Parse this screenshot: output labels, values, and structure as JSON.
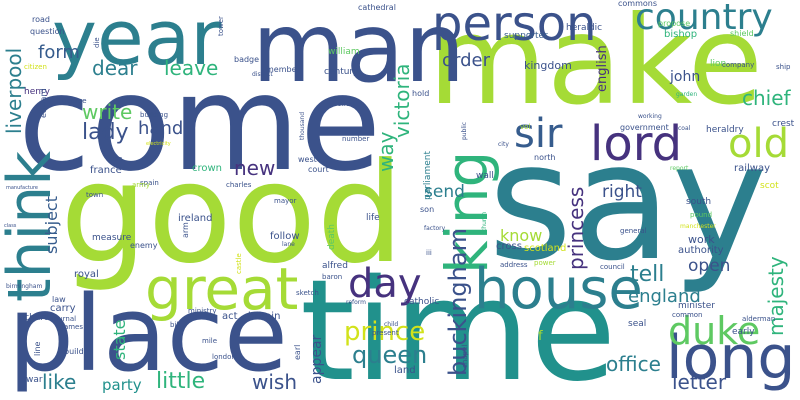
{
  "colors": {
    "background": "#ffffff",
    "palette": [
      "#3b528b",
      "#2c7f8e",
      "#21918c",
      "#2fb47c",
      "#5ec962",
      "#a5db36",
      "#d2e21b",
      "#440154",
      "#46327e",
      "#365c8d"
    ]
  },
  "words": [
    {
      "text": "come",
      "color": "#3b528b",
      "weight": 1.0
    },
    {
      "text": "make",
      "color": "#a5db36",
      "weight": 0.93
    },
    {
      "text": "say",
      "color": "#2c7f8e",
      "weight": 0.95
    },
    {
      "text": "good",
      "color": "#a5db36",
      "weight": 0.92
    },
    {
      "text": "time",
      "color": "#21918c",
      "weight": 0.9
    },
    {
      "text": "year",
      "color": "#2c7f8e",
      "weight": 0.72
    },
    {
      "text": "man",
      "color": "#3b528b",
      "weight": 0.7
    },
    {
      "text": "place",
      "color": "#3b528b",
      "weight": 0.66
    },
    {
      "text": "think",
      "color": "#2c7f8e",
      "weight": 0.55
    },
    {
      "text": "king",
      "color": "#2fb47c",
      "weight": 0.55
    },
    {
      "text": "house",
      "color": "#2c7f8e",
      "weight": 0.52
    },
    {
      "text": "long",
      "color": "#3b528b",
      "weight": 0.5
    },
    {
      "text": "great",
      "color": "#a5db36",
      "weight": 0.5
    },
    {
      "text": "person",
      "color": "#3b528b",
      "weight": 0.42
    },
    {
      "text": "lord",
      "color": "#46327e",
      "weight": 0.42
    },
    {
      "text": "country",
      "color": "#2c7f8e",
      "weight": 0.35
    },
    {
      "text": "day",
      "color": "#46327e",
      "weight": 0.36
    },
    {
      "text": "duke",
      "color": "#5ec962",
      "weight": 0.35
    },
    {
      "text": "sir",
      "color": "#365c8d",
      "weight": 0.36
    },
    {
      "text": "old",
      "color": "#a5db36",
      "weight": 0.34
    },
    {
      "text": "buckingham",
      "color": "#3b528b",
      "weight": 0.24
    },
    {
      "text": "prince",
      "color": "#d2e21b",
      "weight": 0.25
    },
    {
      "text": "queen",
      "color": "#2c7f8e",
      "weight": 0.24
    },
    {
      "text": "victoria",
      "color": "#2fb47c",
      "weight": 0.22
    },
    {
      "text": "princess",
      "color": "#46327e",
      "weight": 0.2
    },
    {
      "text": "majesty",
      "color": "#2fb47c",
      "weight": 0.2
    },
    {
      "text": "liverpool",
      "color": "#2c7f8e",
      "weight": 0.2
    },
    {
      "text": "little",
      "color": "#2fb47c",
      "weight": 0.2
    },
    {
      "text": "way",
      "color": "#2fb47c",
      "weight": 0.2
    },
    {
      "text": "write",
      "color": "#5ec962",
      "weight": 0.2
    },
    {
      "text": "leave",
      "color": "#2fb47c",
      "weight": 0.19
    },
    {
      "text": "dear",
      "color": "#2c7f8e",
      "weight": 0.18
    },
    {
      "text": "lady",
      "color": "#3b528b",
      "weight": 0.2
    },
    {
      "text": "chief",
      "color": "#2fb47c",
      "weight": 0.18
    },
    {
      "text": "tell",
      "color": "#2c7f8e",
      "weight": 0.19
    },
    {
      "text": "letter",
      "color": "#3b528b",
      "weight": 0.18
    },
    {
      "text": "office",
      "color": "#2c7f8e",
      "weight": 0.18
    },
    {
      "text": "wish",
      "color": "#3b528b",
      "weight": 0.17
    },
    {
      "text": "like",
      "color": "#2c7f8e",
      "weight": 0.17
    },
    {
      "text": "england",
      "color": "#2c7f8e",
      "weight": 0.16
    },
    {
      "text": "new",
      "color": "#46327e",
      "weight": 0.17
    },
    {
      "text": "hand",
      "color": "#3b528b",
      "weight": 0.15
    },
    {
      "text": "form",
      "color": "#365c8d",
      "weight": 0.14
    },
    {
      "text": "order",
      "color": "#3b528b",
      "weight": 0.14
    },
    {
      "text": "right",
      "color": "#3b528b",
      "weight": 0.14
    },
    {
      "text": "send",
      "color": "#2c7f8e",
      "weight": 0.13
    },
    {
      "text": "open",
      "color": "#3b528b",
      "weight": 0.14
    },
    {
      "text": "know",
      "color": "#a5db36",
      "weight": 0.13
    },
    {
      "text": "subject",
      "color": "#365c8d",
      "weight": 0.13
    },
    {
      "text": "state",
      "color": "#2fb47c",
      "weight": 0.12
    },
    {
      "text": "party",
      "color": "#21918c",
      "weight": 0.12
    },
    {
      "text": "appear",
      "color": "#3b528b",
      "weight": 0.11
    },
    {
      "text": "john",
      "color": "#3b528b",
      "weight": 0.1
    },
    {
      "text": "english",
      "color": "#46327e",
      "weight": 0.1
    },
    {
      "text": "kingdom",
      "color": "#3b528b",
      "weight": 0.09
    },
    {
      "text": "heraldic",
      "color": "#3b528b",
      "weight": 0.07
    },
    {
      "text": "supporter",
      "color": "#365c8d",
      "weight": 0.07
    },
    {
      "text": "bishop",
      "color": "#2fb47c",
      "weight": 0.08
    },
    {
      "text": "lion",
      "color": "#5ec962",
      "weight": 0.07
    },
    {
      "text": "shield",
      "color": "#5ec962",
      "weight": 0.06
    },
    {
      "text": "commons",
      "color": "#3b528b",
      "weight": 0.06
    },
    {
      "text": "propose",
      "color": "#5ec962",
      "weight": 0.06
    },
    {
      "text": "cathedral",
      "color": "#3b528b",
      "weight": 0.06
    },
    {
      "text": "william",
      "color": "#5ec962",
      "weight": 0.07
    },
    {
      "text": "century",
      "color": "#3b528b",
      "weight": 0.07
    },
    {
      "text": "member",
      "color": "#3b528b",
      "weight": 0.06
    },
    {
      "text": "badge",
      "color": "#3b528b",
      "weight": 0.06
    },
    {
      "text": "tower",
      "color": "#3b528b",
      "weight": 0.05
    },
    {
      "text": "question",
      "color": "#3b528b",
      "weight": 0.06
    },
    {
      "text": "road",
      "color": "#3b528b",
      "weight": 0.06
    },
    {
      "text": "henry",
      "color": "#46327e",
      "weight": 0.07
    },
    {
      "text": "citizen",
      "color": "#d2e21b",
      "weight": 0.05
    },
    {
      "text": "edward",
      "color": "#3b528b",
      "weight": 0.06
    },
    {
      "text": "die",
      "color": "#3b528b",
      "weight": 0.05
    },
    {
      "text": "george",
      "color": "#3b528b",
      "weight": 0.05
    },
    {
      "text": "hold",
      "color": "#3b528b",
      "weight": 0.06
    },
    {
      "text": "parliament",
      "color": "#2c7f8e",
      "weight": 0.07
    },
    {
      "text": "vol",
      "color": "#a5db36",
      "weight": 0.05
    },
    {
      "text": "company",
      "color": "#3b528b",
      "weight": 0.05
    },
    {
      "text": "ship",
      "color": "#3b528b",
      "weight": 0.05
    },
    {
      "text": "heraldry",
      "color": "#3b528b",
      "weight": 0.06
    },
    {
      "text": "crest",
      "color": "#3b528b",
      "weight": 0.06
    },
    {
      "text": "coal",
      "color": "#3b528b",
      "weight": 0.04
    },
    {
      "text": "government",
      "color": "#3b528b",
      "weight": 0.06
    },
    {
      "text": "working",
      "color": "#3b528b",
      "weight": 0.04
    },
    {
      "text": "garden",
      "color": "#2fb47c",
      "weight": 0.05
    },
    {
      "text": "railway",
      "color": "#3b528b",
      "weight": 0.07
    },
    {
      "text": "scot",
      "color": "#d2e21b",
      "weight": 0.06
    },
    {
      "text": "report",
      "color": "#5ec962",
      "weight": 0.04
    },
    {
      "text": "pound",
      "color": "#5ec962",
      "weight": 0.05
    },
    {
      "text": "south",
      "color": "#3b528b",
      "weight": 0.06
    },
    {
      "text": "authority",
      "color": "#3b528b",
      "weight": 0.07
    },
    {
      "text": "work",
      "color": "#3b528b",
      "weight": 0.07
    },
    {
      "text": "manchester",
      "color": "#d2e21b",
      "weight": 0.04
    },
    {
      "text": "general",
      "color": "#3b528b",
      "weight": 0.05
    },
    {
      "text": "council",
      "color": "#3b528b",
      "weight": 0.05
    },
    {
      "text": "minister",
      "color": "#3b528b",
      "weight": 0.06
    },
    {
      "text": "alderman",
      "color": "#3b528b",
      "weight": 0.05
    },
    {
      "text": "early",
      "color": "#3b528b",
      "weight": 0.06
    },
    {
      "text": "common",
      "color": "#3b528b",
      "weight": 0.05
    },
    {
      "text": "seal",
      "color": "#3b528b",
      "weight": 0.06
    },
    {
      "text": "north",
      "color": "#3b528b",
      "weight": 0.06
    },
    {
      "text": "scotland",
      "color": "#d2e21b",
      "weight": 0.07
    },
    {
      "text": "wall",
      "color": "#3b528b",
      "weight": 0.06
    },
    {
      "text": "son",
      "color": "#3b528b",
      "weight": 0.05
    },
    {
      "text": "cross",
      "color": "#3b528b",
      "weight": 0.07
    },
    {
      "text": "factory",
      "color": "#3b528b",
      "weight": 0.04
    },
    {
      "text": "church",
      "color": "#2fb47c",
      "weight": 0.05
    },
    {
      "text": "iii",
      "color": "#3b528b",
      "weight": 0.05
    },
    {
      "text": "address",
      "color": "#3b528b",
      "weight": 0.05
    },
    {
      "text": "power",
      "color": "#a5db36",
      "weight": 0.05
    },
    {
      "text": "catholic",
      "color": "#3b528b",
      "weight": 0.06
    },
    {
      "text": "public",
      "color": "#3b528b",
      "weight": 0.04
    },
    {
      "text": "city",
      "color": "#3b528b",
      "weight": 0.05
    },
    {
      "text": "lane",
      "color": "#3b528b",
      "weight": 0.04
    },
    {
      "text": "alfred",
      "color": "#3b528b",
      "weight": 0.06
    },
    {
      "text": "baron",
      "color": "#3b528b",
      "weight": 0.05
    },
    {
      "text": "sketch",
      "color": "#3b528b",
      "weight": 0.05
    },
    {
      "text": "reform",
      "color": "#3b528b",
      "weight": 0.05
    },
    {
      "text": "life",
      "color": "#3b528b",
      "weight": 0.06
    },
    {
      "text": "death",
      "color": "#5ec962",
      "weight": 0.06
    },
    {
      "text": "follow",
      "color": "#3b528b",
      "weight": 0.07
    },
    {
      "text": "ireland",
      "color": "#3b528b",
      "weight": 0.07
    },
    {
      "text": "arm",
      "color": "#3b528b",
      "weight": 0.05
    },
    {
      "text": "mayor",
      "color": "#3b528b",
      "weight": 0.05
    },
    {
      "text": "court",
      "color": "#3b528b",
      "weight": 0.06
    },
    {
      "text": "west",
      "color": "#3b528b",
      "weight": 0.06
    },
    {
      "text": "street",
      "color": "#3b528b",
      "weight": 0.04
    },
    {
      "text": "thousand",
      "color": "#3b528b",
      "weight": 0.04
    },
    {
      "text": "number",
      "color": "#3b528b",
      "weight": 0.05
    },
    {
      "text": "crown",
      "color": "#2fb47c",
      "weight": 0.07
    },
    {
      "text": "charles",
      "color": "#3b528b",
      "weight": 0.05
    },
    {
      "text": "district",
      "color": "#3b528b",
      "weight": 0.04
    },
    {
      "text": "building",
      "color": "#3b528b",
      "weight": 0.05
    },
    {
      "text": "france",
      "color": "#3b528b",
      "weight": 0.07
    },
    {
      "text": "spain",
      "color": "#3b528b",
      "weight": 0.05
    },
    {
      "text": "town",
      "color": "#3b528b",
      "weight": 0.05
    },
    {
      "text": "army",
      "color": "#a5db36",
      "weight": 0.05
    },
    {
      "text": "measure",
      "color": "#3b528b",
      "weight": 0.06
    },
    {
      "text": "enemy",
      "color": "#3b528b",
      "weight": 0.06
    },
    {
      "text": "castle",
      "color": "#d2e21b",
      "weight": 0.05
    },
    {
      "text": "royal",
      "color": "#3b528b",
      "weight": 0.07
    },
    {
      "text": "carry",
      "color": "#3b528b",
      "weight": 0.07
    },
    {
      "text": "law",
      "color": "#3b528b",
      "weight": 0.05
    },
    {
      "text": "richard",
      "color": "#3b528b",
      "weight": 0.07
    },
    {
      "text": "journal",
      "color": "#3b528b",
      "weight": 0.05
    },
    {
      "text": "james",
      "color": "#3b528b",
      "weight": 0.05
    },
    {
      "text": "bill",
      "color": "#3b528b",
      "weight": 0.05
    },
    {
      "text": "line",
      "color": "#3b528b",
      "weight": 0.06
    },
    {
      "text": "build",
      "color": "#3b528b",
      "weight": 0.06
    },
    {
      "text": "war",
      "color": "#3b528b",
      "weight": 0.07
    },
    {
      "text": "ministry",
      "color": "#3b528b",
      "weight": 0.05
    },
    {
      "text": "act",
      "color": "#3b528b",
      "weight": 0.07
    },
    {
      "text": "britain",
      "color": "#3b528b",
      "weight": 0.07
    },
    {
      "text": "mile",
      "color": "#3b528b",
      "weight": 0.05
    },
    {
      "text": "london",
      "color": "#3b528b",
      "weight": 0.05
    },
    {
      "text": "earl",
      "color": "#3b528b",
      "weight": 0.06
    },
    {
      "text": "land",
      "color": "#3b528b",
      "weight": 0.07
    },
    {
      "text": "child",
      "color": "#3b528b",
      "weight": 0.04
    },
    {
      "text": "present",
      "color": "#3b528b",
      "weight": 0.05
    },
    {
      "text": "chapel",
      "color": "#3b528b",
      "weight": 0.05
    },
    {
      "text": "use",
      "color": "#3b528b",
      "weight": 0.05
    },
    {
      "text": "manufacture",
      "color": "#3b528b",
      "weight": 0.04
    },
    {
      "text": "birmingham",
      "color": "#3b528b",
      "weight": 0.04
    },
    {
      "text": "class",
      "color": "#3b528b",
      "weight": 0.04
    },
    {
      "text": "electricity",
      "color": "#d2e21b",
      "weight": 0.04
    },
    {
      "text": "f",
      "color": "#a5db36",
      "weight": 0.05
    }
  ]
}
